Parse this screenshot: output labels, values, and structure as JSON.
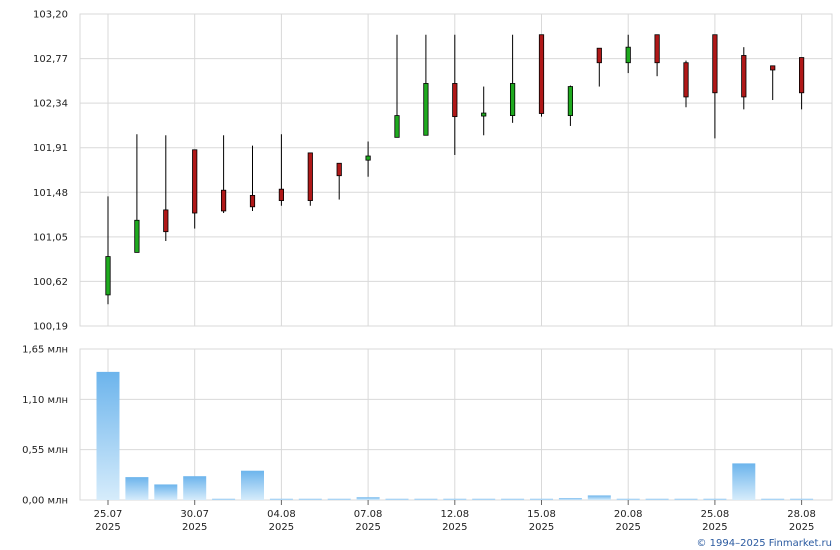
{
  "chart_data": [
    {
      "type": "candlestick",
      "ylim": [
        100.19,
        103.2
      ],
      "y_ticks": [
        "103,20",
        "102,77",
        "102,34",
        "101,91",
        "101,48",
        "101,05",
        "100,62",
        "100,19"
      ],
      "y_tick_values": [
        103.2,
        102.77,
        102.34,
        101.91,
        101.48,
        101.05,
        100.62,
        100.19
      ],
      "grid": true,
      "colors": {
        "up": "#1faa1f",
        "down": "#b01818",
        "flat": "#222222",
        "wick": "#000000"
      },
      "candles": [
        {
          "date": "25.07",
          "o": 100.49,
          "h": 101.44,
          "l": 100.4,
          "c": 100.86
        },
        {
          "date": "28.07",
          "o": 100.9,
          "h": 102.04,
          "l": 100.9,
          "c": 101.21
        },
        {
          "date": "29.07",
          "o": 101.31,
          "h": 102.03,
          "l": 101.01,
          "c": 101.1
        },
        {
          "date": "30.07",
          "o": 101.89,
          "h": 101.89,
          "l": 101.13,
          "c": 101.28
        },
        {
          "date": "31.07",
          "o": 101.5,
          "h": 102.03,
          "l": 101.28,
          "c": 101.3
        },
        {
          "date": "01.08",
          "o": 101.45,
          "h": 101.93,
          "l": 101.3,
          "c": 101.34
        },
        {
          "date": "04.08",
          "o": 101.51,
          "h": 102.04,
          "l": 101.35,
          "c": 101.4
        },
        {
          "date": "05.08",
          "o": 101.86,
          "h": 101.86,
          "l": 101.35,
          "c": 101.4
        },
        {
          "date": "06.08",
          "o": 101.76,
          "h": 101.76,
          "l": 101.41,
          "c": 101.64
        },
        {
          "date": "07.08",
          "o": 101.79,
          "h": 101.97,
          "l": 101.63,
          "c": 101.83
        },
        {
          "date": "08.08",
          "o": 102.01,
          "h": 103.0,
          "l": 102.01,
          "c": 102.22
        },
        {
          "date": "11.08",
          "o": 102.03,
          "h": 103.0,
          "l": 102.03,
          "c": 102.53
        },
        {
          "date": "12.08",
          "o": 102.53,
          "h": 103.0,
          "l": 101.84,
          "c": 102.21
        },
        {
          "date": "13.08",
          "o": 102.22,
          "h": 102.5,
          "l": 102.03,
          "c": 102.24
        },
        {
          "date": "14.08",
          "o": 102.22,
          "h": 103.0,
          "l": 102.15,
          "c": 102.53
        },
        {
          "date": "15.08",
          "o": 103.0,
          "h": 103.0,
          "l": 102.21,
          "c": 102.24
        },
        {
          "date": "18.08",
          "o": 102.22,
          "h": 102.51,
          "l": 102.12,
          "c": 102.5
        },
        {
          "date": "19.08",
          "o": 102.87,
          "h": 102.87,
          "l": 102.5,
          "c": 102.73
        },
        {
          "date": "20.08",
          "o": 102.73,
          "h": 103.0,
          "l": 102.63,
          "c": 102.88
        },
        {
          "date": "21.08",
          "o": 103.0,
          "h": 103.0,
          "l": 102.6,
          "c": 102.73
        },
        {
          "date": "22.08",
          "o": 102.73,
          "h": 102.75,
          "l": 102.3,
          "c": 102.4
        },
        {
          "date": "25.08",
          "o": 103.0,
          "h": 103.0,
          "l": 102.0,
          "c": 102.44
        },
        {
          "date": "26.08",
          "o": 102.8,
          "h": 102.88,
          "l": 102.28,
          "c": 102.4
        },
        {
          "date": "27.08",
          "o": 102.7,
          "h": 102.7,
          "l": 102.37,
          "c": 102.66
        },
        {
          "date": "28.08",
          "o": 102.78,
          "h": 102.78,
          "l": 102.28,
          "c": 102.44
        }
      ]
    },
    {
      "type": "bar",
      "ylim": [
        0,
        1.65
      ],
      "y_ticks": [
        "1,65 млн",
        "1,10 млн",
        "0,55 млн",
        "0,00 млн"
      ],
      "y_tick_values": [
        1.65,
        1.1,
        0.55,
        0.0
      ],
      "grid": true,
      "unit": "млн",
      "colors": {
        "bar_top": "#6cb4ec",
        "bar_bottom": "#d6ecfb"
      },
      "categories": [
        "25.07",
        "28.07",
        "29.07",
        "30.07",
        "31.07",
        "01.08",
        "04.08",
        "05.08",
        "06.08",
        "07.08",
        "08.08",
        "11.08",
        "12.08",
        "13.08",
        "14.08",
        "15.08",
        "18.08",
        "19.08",
        "20.08",
        "21.08",
        "22.08",
        "25.08",
        "26.08",
        "27.08",
        "28.08"
      ],
      "values": [
        1.4,
        0.25,
        0.17,
        0.26,
        0.01,
        0.32,
        0.01,
        0.01,
        0.01,
        0.03,
        0.01,
        0.01,
        0.01,
        0.01,
        0.01,
        0.01,
        0.02,
        0.05,
        0.01,
        0.01,
        0.01,
        0.01,
        0.4,
        0.01,
        0.01
      ]
    }
  ],
  "x_axis": {
    "labels": [
      {
        "day": "25.07",
        "year": "2025",
        "index": 0
      },
      {
        "day": "30.07",
        "year": "2025",
        "index": 3
      },
      {
        "day": "04.08",
        "year": "2025",
        "index": 6
      },
      {
        "day": "07.08",
        "year": "2025",
        "index": 9
      },
      {
        "day": "12.08",
        "year": "2025",
        "index": 12
      },
      {
        "day": "15.08",
        "year": "2025",
        "index": 15
      },
      {
        "day": "20.08",
        "year": "2025",
        "index": 18
      },
      {
        "day": "25.08",
        "year": "2025",
        "index": 21
      },
      {
        "day": "28.08",
        "year": "2025",
        "index": 24
      }
    ]
  },
  "copyright": "© 1994–2025 Finmarket.ru"
}
